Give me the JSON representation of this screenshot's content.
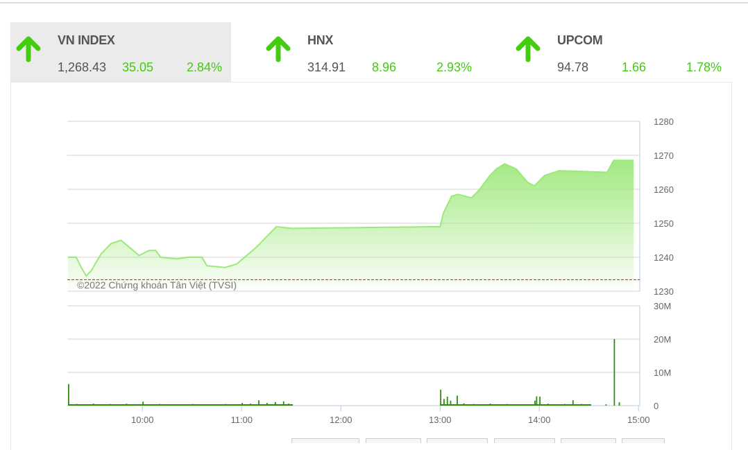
{
  "indices": [
    {
      "name": "VN INDEX",
      "value": "1,268.43",
      "change": "35.05",
      "percent": "2.84%",
      "direction": "up",
      "active": true
    },
    {
      "name": "HNX",
      "value": "314.91",
      "change": "8.96",
      "percent": "2.93%",
      "direction": "up",
      "active": false
    },
    {
      "name": "UPCOM",
      "value": "94.78",
      "change": "1.66",
      "percent": "1.78%",
      "direction": "up",
      "active": false
    }
  ],
  "colors": {
    "up": "#44cc11",
    "line": "#9de87a",
    "volume": "#2e8b0e",
    "reference": "#ff0000"
  },
  "chart_data": [
    {
      "type": "area",
      "title": "",
      "watermark": "©2022 Chứng khoán Tân Việt (TVSI)",
      "ylim": [
        1230,
        1280
      ],
      "yticks": [
        "1280",
        "1270",
        "1260",
        "1250",
        "1240",
        "1230"
      ],
      "reference": 1233.4,
      "grid": true,
      "x": [
        "09:15",
        "09:20",
        "09:23",
        "09:26",
        "09:29",
        "09:35",
        "09:41",
        "09:47",
        "09:52",
        "09:58",
        "10:04",
        "10:08",
        "10:11",
        "10:21",
        "10:27",
        "10:36",
        "10:39",
        "10:50",
        "10:57",
        "11:03",
        "11:09",
        "11:15",
        "11:21",
        "11:30",
        "13:00",
        "13:02",
        "13:07",
        "13:11",
        "13:19",
        "13:24",
        "13:30",
        "13:34",
        "13:39",
        "13:46",
        "13:53",
        "13:57",
        "14:03",
        "14:12",
        "14:41",
        "14:45",
        "14:57"
      ],
      "values": [
        1240,
        1240,
        1237,
        1234.5,
        1236,
        1241,
        1244,
        1245,
        1243,
        1240.5,
        1242,
        1242,
        1240,
        1239.5,
        1240,
        1240,
        1237.5,
        1237,
        1238,
        1240.5,
        1243,
        1246,
        1249,
        1248.5,
        1249,
        1253,
        1258,
        1258.5,
        1257.5,
        1260,
        1264,
        1266,
        1267.5,
        1266,
        1262,
        1261,
        1264,
        1265.5,
        1265,
        1268.5,
        1268.5
      ]
    },
    {
      "type": "bar",
      "ylim": [
        0,
        30
      ],
      "yticks": [
        "30M",
        "20M",
        "10M",
        "0"
      ],
      "xticks": [
        "10:00",
        "11:00",
        "12:00",
        "13:00",
        "14:00",
        "15:00"
      ],
      "unit": "M",
      "x": [
        "09:15",
        "09:20",
        "09:30",
        "09:40",
        "09:50",
        "10:00",
        "10:10",
        "10:20",
        "10:30",
        "10:40",
        "10:50",
        "11:00",
        "11:05",
        "11:10",
        "11:15",
        "11:20",
        "11:25",
        "11:28",
        "13:00",
        "13:02",
        "13:04",
        "13:06",
        "13:10",
        "13:14",
        "13:20",
        "13:30",
        "13:40",
        "13:50",
        "13:57",
        "13:58",
        "14:00",
        "14:05",
        "14:15",
        "14:20",
        "14:25",
        "14:30",
        "14:40",
        "14:45",
        "14:48"
      ],
      "values": [
        6.5,
        0.5,
        0.6,
        0.5,
        0.6,
        1.2,
        0.5,
        0.4,
        0.5,
        0.4,
        0.5,
        0.8,
        0.6,
        1.6,
        0.8,
        1.1,
        1.3,
        0.6,
        4.8,
        2.0,
        2.7,
        1.5,
        3.0,
        0.7,
        0.5,
        0.6,
        0.5,
        0.4,
        1.5,
        2.8,
        2.7,
        0.6,
        0.5,
        1.6,
        0.5,
        0.4,
        0.4,
        20,
        1.0
      ]
    }
  ]
}
